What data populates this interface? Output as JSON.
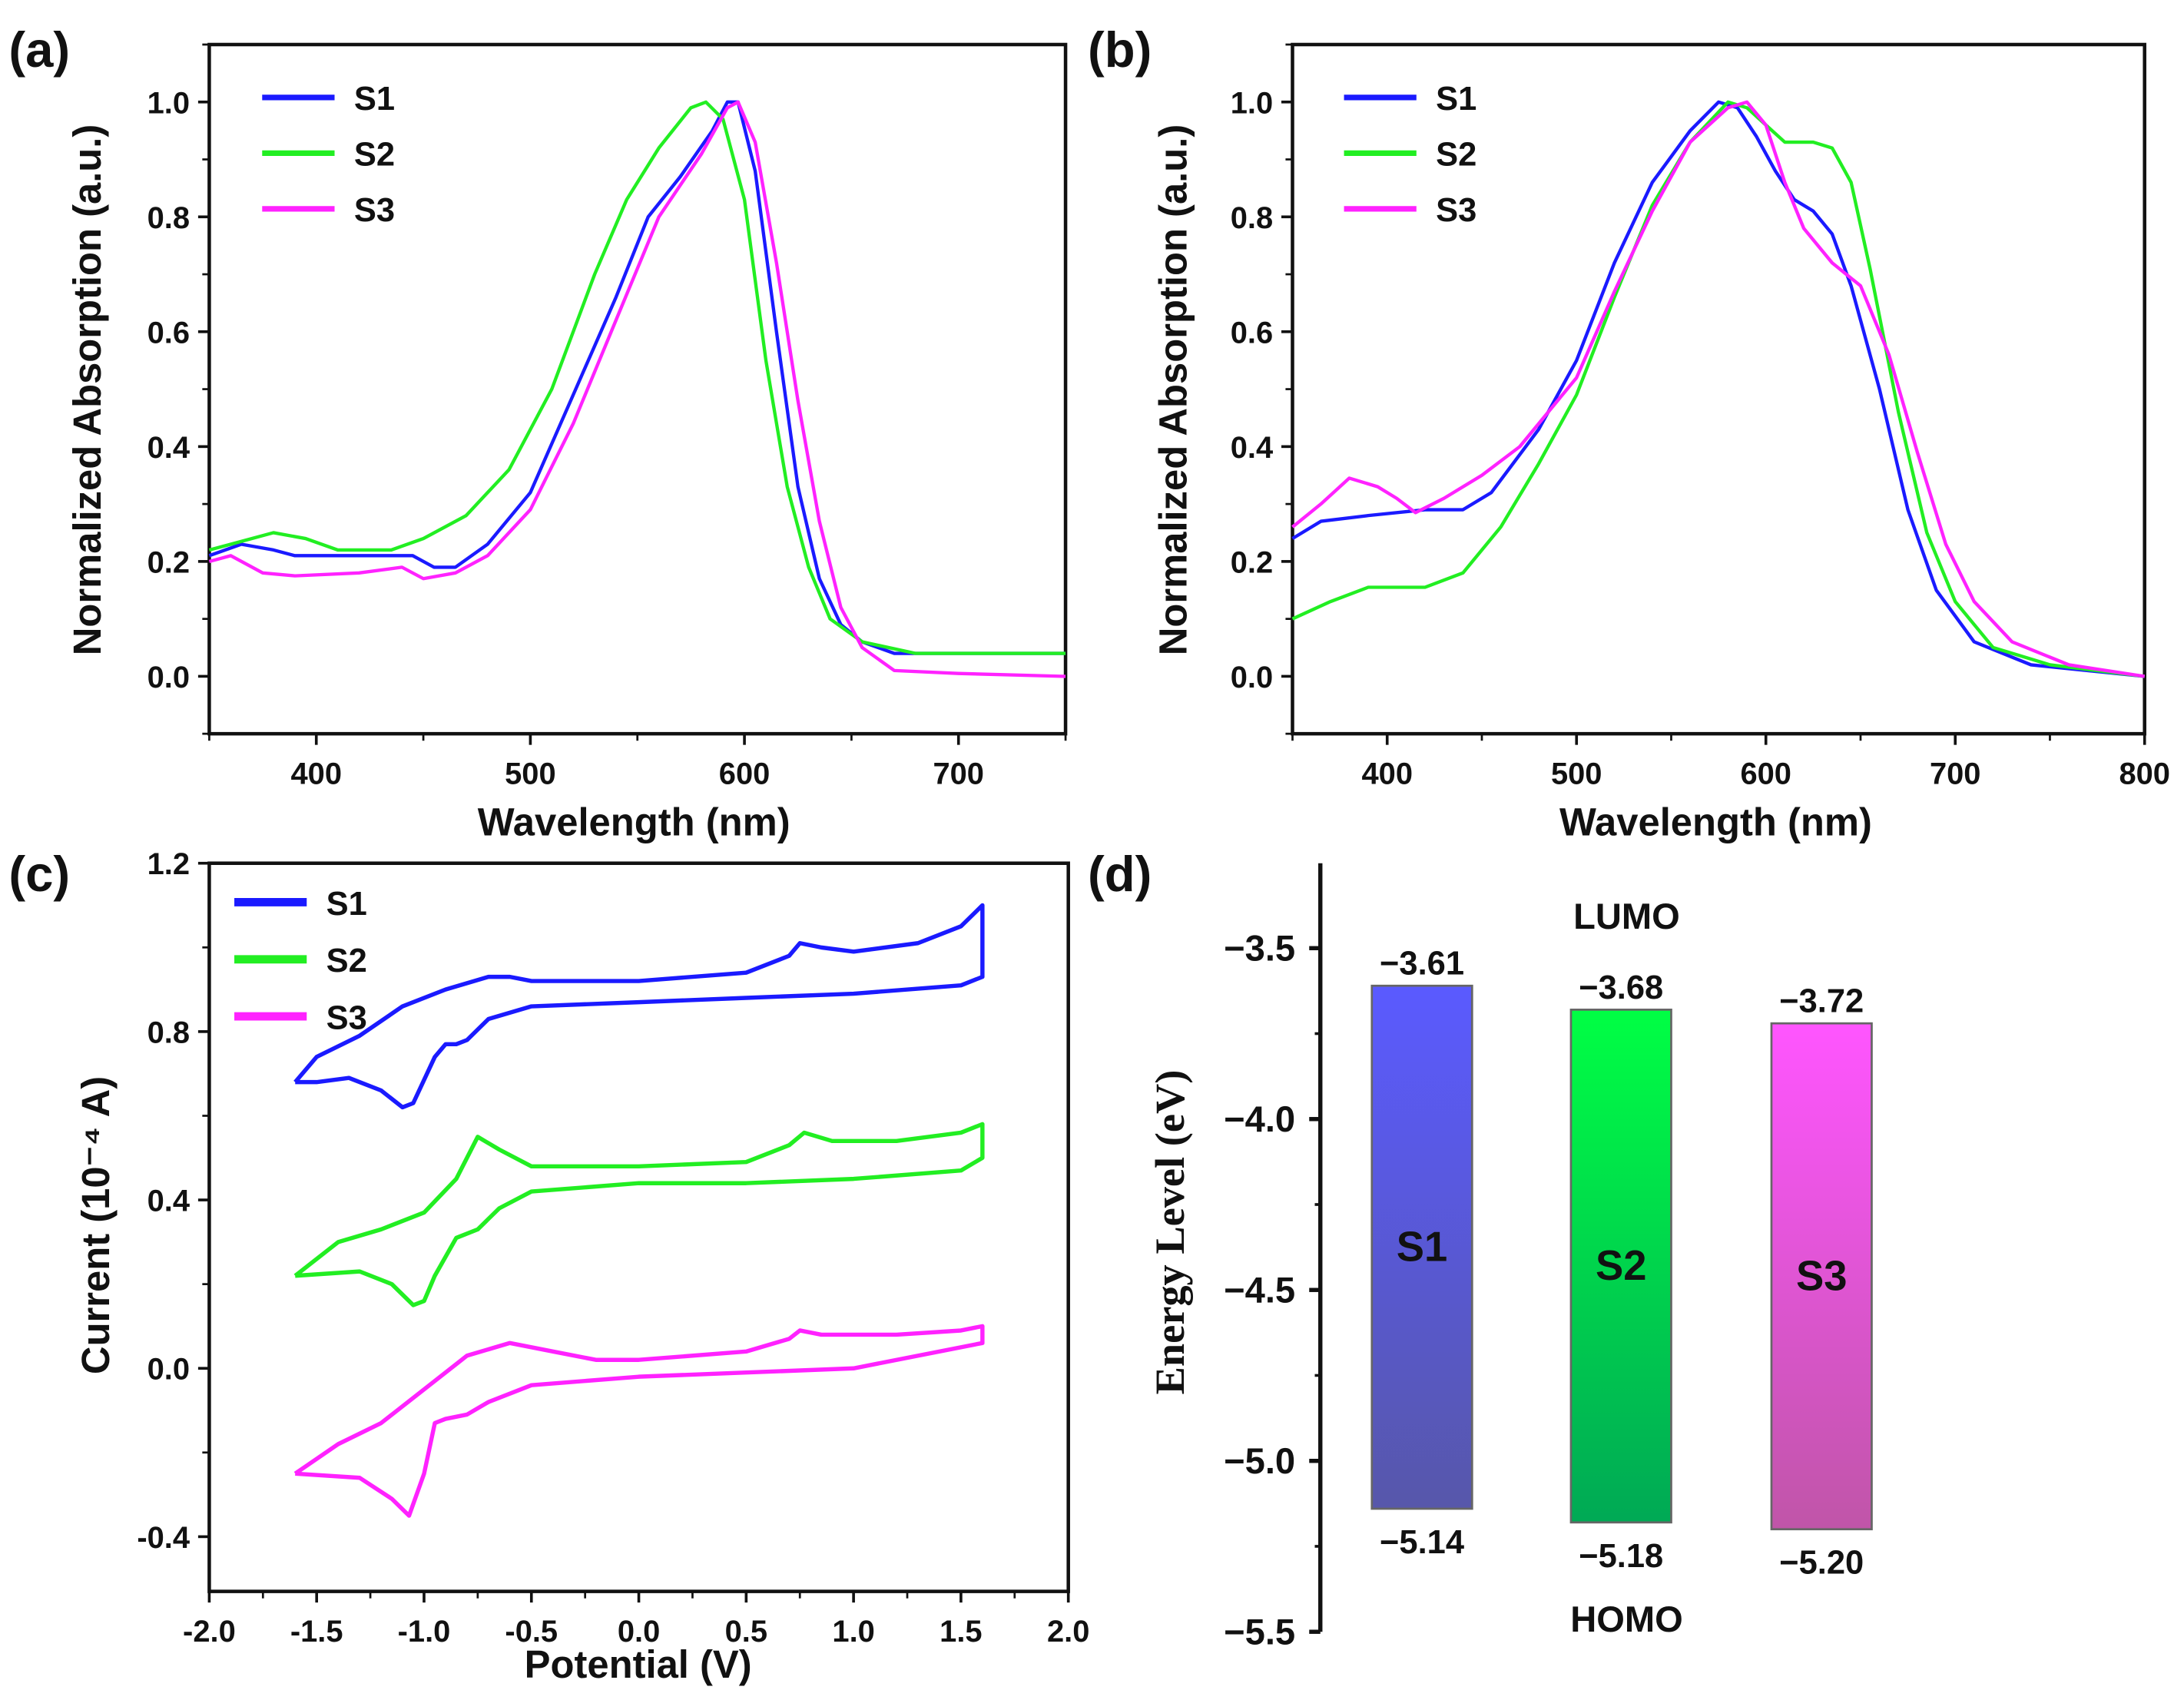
{
  "chart_data": [
    {
      "panel": "(a)",
      "type": "line",
      "xlabel": "Wavelength (nm)",
      "ylabel": "Normalized Absorption (a.u.)",
      "xlim": [
        350,
        750
      ],
      "ylim": [
        -0.1,
        1.1
      ],
      "xticks": [
        400,
        500,
        600,
        700
      ],
      "xtick_labels": [
        "400",
        "500",
        "600",
        "700"
      ],
      "yticks": [
        0.0,
        0.2,
        0.4,
        0.6,
        0.8,
        1.0
      ],
      "ytick_labels": [
        "0.0",
        "0.2",
        "0.4",
        "0.6",
        "0.8",
        "1.0"
      ],
      "legend": "top-left",
      "series": [
        {
          "name": "S1",
          "color": "#1a1aff",
          "x": [
            350,
            365,
            380,
            390,
            410,
            430,
            445,
            455,
            465,
            480,
            500,
            520,
            540,
            555,
            570,
            585,
            592,
            597,
            605,
            615,
            625,
            635,
            645,
            655,
            670,
            700,
            750
          ],
          "y": [
            0.21,
            0.23,
            0.22,
            0.21,
            0.21,
            0.21,
            0.21,
            0.19,
            0.19,
            0.23,
            0.32,
            0.49,
            0.66,
            0.8,
            0.87,
            0.95,
            1.0,
            1.0,
            0.88,
            0.6,
            0.33,
            0.17,
            0.09,
            0.06,
            0.04,
            0.04,
            0.04
          ]
        },
        {
          "name": "S2",
          "color": "#22ee22",
          "x": [
            350,
            360,
            380,
            395,
            410,
            435,
            450,
            470,
            490,
            510,
            530,
            545,
            560,
            575,
            582,
            590,
            600,
            610,
            620,
            630,
            640,
            655,
            680,
            750
          ],
          "y": [
            0.22,
            0.23,
            0.25,
            0.24,
            0.22,
            0.22,
            0.24,
            0.28,
            0.36,
            0.5,
            0.7,
            0.83,
            0.92,
            0.99,
            1.0,
            0.97,
            0.83,
            0.55,
            0.33,
            0.19,
            0.1,
            0.06,
            0.04,
            0.04
          ]
        },
        {
          "name": "S3",
          "color": "#ff22ff",
          "x": [
            350,
            360,
            375,
            390,
            420,
            440,
            450,
            465,
            480,
            500,
            520,
            540,
            560,
            580,
            592,
            597,
            605,
            615,
            625,
            635,
            645,
            655,
            670,
            700,
            750
          ],
          "y": [
            0.2,
            0.21,
            0.18,
            0.175,
            0.18,
            0.19,
            0.17,
            0.18,
            0.21,
            0.29,
            0.44,
            0.62,
            0.8,
            0.91,
            0.99,
            1.0,
            0.93,
            0.72,
            0.48,
            0.27,
            0.12,
            0.05,
            0.01,
            0.005,
            0.0
          ]
        }
      ]
    },
    {
      "panel": "(b)",
      "type": "line",
      "xlabel": "Wavelength (nm)",
      "ylabel": "Normalized Absorption (a.u.)",
      "xlim": [
        350,
        800
      ],
      "ylim": [
        -0.1,
        1.1
      ],
      "xticks": [
        400,
        500,
        600,
        700,
        800
      ],
      "xtick_labels": [
        "400",
        "500",
        "600",
        "700",
        "800"
      ],
      "yticks": [
        0.0,
        0.2,
        0.4,
        0.6,
        0.8,
        1.0
      ],
      "ytick_labels": [
        "0.0",
        "0.2",
        "0.4",
        "0.6",
        "0.8",
        "1.0"
      ],
      "legend": "top-left",
      "series": [
        {
          "name": "S1",
          "color": "#1a1aff",
          "x": [
            350,
            365,
            390,
            420,
            440,
            455,
            480,
            500,
            520,
            540,
            560,
            575,
            585,
            595,
            605,
            615,
            625,
            635,
            645,
            660,
            675,
            690,
            710,
            740,
            800
          ],
          "y": [
            0.24,
            0.27,
            0.28,
            0.29,
            0.29,
            0.32,
            0.43,
            0.55,
            0.72,
            0.86,
            0.95,
            1.0,
            0.99,
            0.94,
            0.88,
            0.83,
            0.81,
            0.77,
            0.68,
            0.5,
            0.29,
            0.15,
            0.06,
            0.02,
            0.0
          ]
        },
        {
          "name": "S2",
          "color": "#22ee22",
          "x": [
            350,
            370,
            390,
            420,
            440,
            460,
            480,
            500,
            520,
            540,
            560,
            580,
            590,
            600,
            610,
            625,
            635,
            645,
            655,
            670,
            685,
            700,
            720,
            750,
            800
          ],
          "y": [
            0.1,
            0.13,
            0.155,
            0.155,
            0.18,
            0.26,
            0.37,
            0.49,
            0.66,
            0.82,
            0.93,
            1.0,
            0.99,
            0.96,
            0.93,
            0.93,
            0.92,
            0.86,
            0.71,
            0.46,
            0.25,
            0.13,
            0.05,
            0.02,
            0.0
          ]
        },
        {
          "name": "S3",
          "color": "#ff22ff",
          "x": [
            350,
            365,
            380,
            395,
            405,
            415,
            430,
            450,
            470,
            500,
            520,
            540,
            560,
            580,
            590,
            600,
            610,
            620,
            635,
            650,
            665,
            680,
            695,
            710,
            730,
            760,
            800
          ],
          "y": [
            0.26,
            0.3,
            0.345,
            0.33,
            0.31,
            0.285,
            0.31,
            0.35,
            0.4,
            0.52,
            0.67,
            0.81,
            0.93,
            0.99,
            1.0,
            0.96,
            0.86,
            0.78,
            0.72,
            0.68,
            0.56,
            0.39,
            0.23,
            0.13,
            0.06,
            0.02,
            0.0
          ]
        }
      ]
    },
    {
      "panel": "(c)",
      "type": "line",
      "xlabel": "Potential (V)",
      "ylabel": "Current (10⁻⁴ A)",
      "xlim": [
        -2.0,
        2.0
      ],
      "ylim": [
        -0.53,
        1.2
      ],
      "xticks": [
        -2.0,
        -1.5,
        -1.0,
        -0.5,
        0.0,
        0.5,
        1.0,
        1.5,
        2.0
      ],
      "xtick_labels": [
        "-2.0",
        "-1.5",
        "-1.0",
        "-0.5",
        "0.0",
        "0.5",
        "1.0",
        "1.5",
        "2.0"
      ],
      "yticks": [
        -0.4,
        0.0,
        0.4,
        0.8,
        1.2
      ],
      "ytick_labels": [
        "-0.4",
        "0.0",
        "0.4",
        "0.8",
        "1.2"
      ],
      "legend": "top-left",
      "series": [
        {
          "name": "S1",
          "color": "#1a1aff",
          "x": [
            -1.6,
            -1.5,
            -1.3,
            -1.1,
            -0.9,
            -0.7,
            -0.6,
            -0.5,
            0,
            0.5,
            0.7,
            0.75,
            0.85,
            1.0,
            1.3,
            1.5,
            1.6,
            1.6,
            1.5,
            1.0,
            0.5,
            0,
            -0.5,
            -0.7,
            -0.8,
            -0.85,
            -0.9,
            -0.95,
            -1.05,
            -1.1,
            -1.2,
            -1.35,
            -1.5,
            -1.6
          ],
          "y": [
            0.68,
            0.74,
            0.79,
            0.86,
            0.9,
            0.93,
            0.93,
            0.92,
            0.92,
            0.94,
            0.98,
            1.01,
            1.0,
            0.99,
            1.01,
            1.05,
            1.1,
            0.93,
            0.91,
            0.89,
            0.88,
            0.87,
            0.86,
            0.83,
            0.78,
            0.77,
            0.77,
            0.74,
            0.63,
            0.62,
            0.66,
            0.69,
            0.68,
            0.68
          ]
        },
        {
          "name": "S2",
          "color": "#22ee22",
          "x": [
            -1.6,
            -1.4,
            -1.2,
            -1.0,
            -0.85,
            -0.75,
            -0.65,
            -0.5,
            0,
            0.5,
            0.7,
            0.77,
            0.9,
            1.2,
            1.5,
            1.6,
            1.6,
            1.5,
            1.0,
            0.5,
            0,
            -0.5,
            -0.65,
            -0.75,
            -0.85,
            -0.95,
            -1.0,
            -1.05,
            -1.15,
            -1.3,
            -1.6
          ],
          "y": [
            0.22,
            0.3,
            0.33,
            0.37,
            0.45,
            0.55,
            0.52,
            0.48,
            0.48,
            0.49,
            0.53,
            0.56,
            0.54,
            0.54,
            0.56,
            0.58,
            0.5,
            0.47,
            0.45,
            0.44,
            0.44,
            0.42,
            0.38,
            0.33,
            0.31,
            0.22,
            0.16,
            0.15,
            0.2,
            0.23,
            0.22
          ]
        },
        {
          "name": "S3",
          "color": "#ff22ff",
          "x": [
            -1.6,
            -1.4,
            -1.2,
            -1.0,
            -0.8,
            -0.6,
            -0.4,
            -0.2,
            0,
            0.5,
            0.7,
            0.75,
            0.85,
            1.2,
            1.5,
            1.6,
            1.6,
            1.0,
            0.5,
            0,
            -0.5,
            -0.7,
            -0.8,
            -0.9,
            -0.95,
            -1.0,
            -1.07,
            -1.15,
            -1.3,
            -1.6
          ],
          "y": [
            -0.25,
            -0.18,
            -0.13,
            -0.05,
            0.03,
            0.06,
            0.04,
            0.02,
            0.02,
            0.04,
            0.07,
            0.09,
            0.08,
            0.08,
            0.09,
            0.1,
            0.06,
            0.0,
            -0.01,
            -0.02,
            -0.04,
            -0.08,
            -0.11,
            -0.12,
            -0.13,
            -0.25,
            -0.35,
            -0.31,
            -0.26,
            -0.25
          ]
        }
      ]
    },
    {
      "panel": "(d)",
      "type": "bar",
      "ylabel": "Energy Level (eV)",
      "ylim": [
        -5.5,
        -3.25
      ],
      "yticks": [
        -3.5,
        -4.0,
        -4.5,
        -5.0,
        -5.5
      ],
      "ytick_labels": [
        "−3.5",
        "−4.0",
        "−4.5",
        "−5.0",
        "−5.5"
      ],
      "top_label": "LUMO",
      "bottom_label": "HOMO",
      "categories": [
        "S1",
        "S2",
        "S3"
      ],
      "lumo": [
        -3.61,
        -3.68,
        -3.72
      ],
      "homo": [
        -5.14,
        -5.18,
        -5.2
      ],
      "lumo_labels": [
        "−3.61",
        "−3.68",
        "−3.72"
      ],
      "homo_labels": [
        "−5.14",
        "−5.18",
        "−5.20"
      ],
      "colors_top": [
        "#5a5aff",
        "#00ff44",
        "#ff55ff"
      ],
      "colors_bottom": [
        "#5757aa",
        "#00a955",
        "#c055a8"
      ]
    }
  ]
}
